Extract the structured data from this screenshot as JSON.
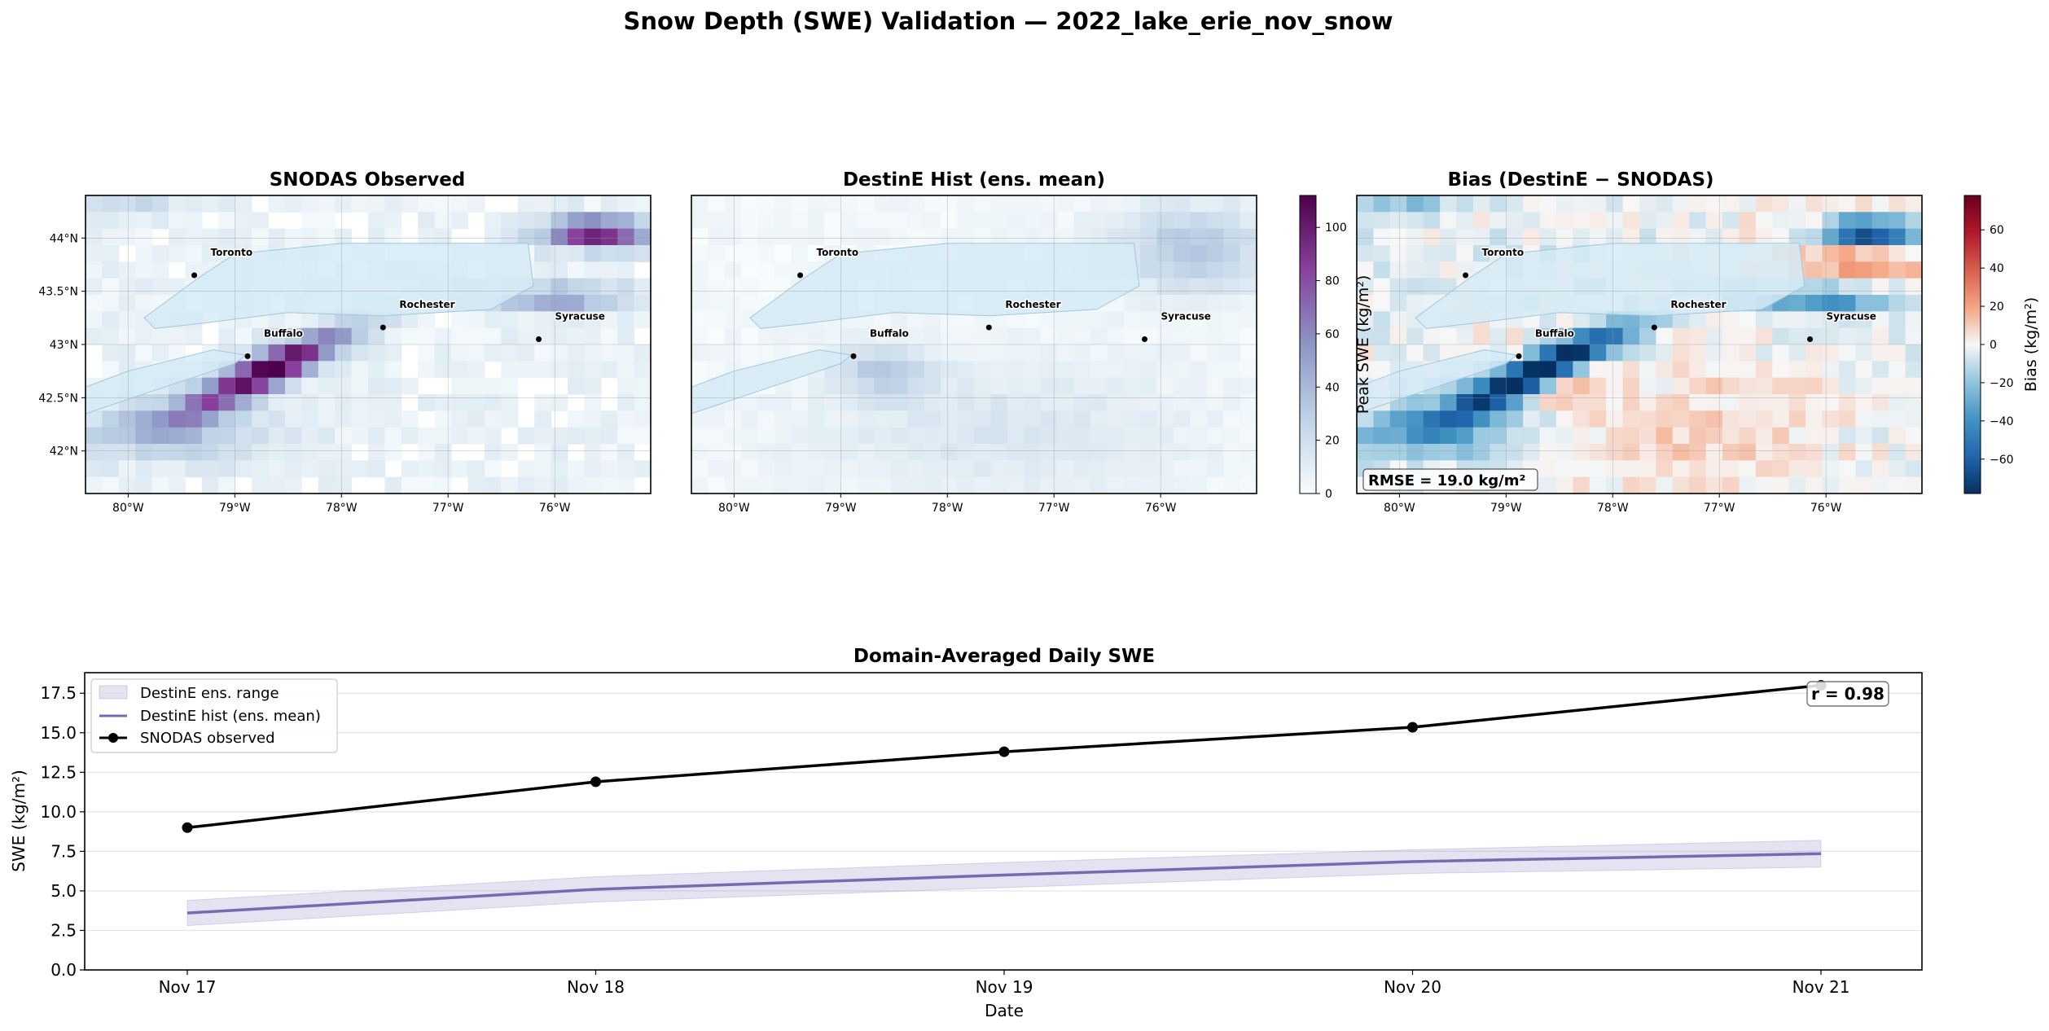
{
  "figure": {
    "title": "Snow Depth (SWE) Validation — 2022_lake_erie_nov_snow"
  },
  "maps": {
    "panels": [
      {
        "title": "SNODAS Observed"
      },
      {
        "title": "DestinE Hist (ens. mean)"
      },
      {
        "title": "Bias (DestinE − SNODAS)"
      }
    ],
    "lon_ticks": [
      "80°W",
      "79°W",
      "78°W",
      "77°W",
      "76°W"
    ],
    "lon_values": [
      -80,
      -79,
      -78,
      -77,
      -76
    ],
    "lat_ticks": [
      "44°N",
      "43.5°N",
      "43°N",
      "42.5°N",
      "42°N"
    ],
    "lat_values": [
      44,
      43.5,
      43,
      42.5,
      42
    ],
    "extent": {
      "lon": [
        -80.4,
        -75.1
      ],
      "lat": [
        41.6,
        44.4
      ]
    },
    "cities": [
      {
        "name": "Toronto",
        "lon": -79.38,
        "lat": 43.65
      },
      {
        "name": "Buffalo",
        "lon": -78.88,
        "lat": 42.89
      },
      {
        "name": "Rochester",
        "lon": -77.61,
        "lat": 43.16
      },
      {
        "name": "Syracuse",
        "lon": -76.15,
        "lat": 43.05
      }
    ],
    "swe_colorbar": {
      "label": "Peak SWE (kg/m²)",
      "ticks": [
        "0",
        "20",
        "40",
        "60",
        "80",
        "100"
      ],
      "range": [
        0,
        112
      ],
      "colors": [
        "#f7fcfd",
        "#bfd3e6",
        "#8c96c6",
        "#88419d",
        "#4d004b"
      ]
    },
    "bias_colorbar": {
      "label": "Bias (kg/m²)",
      "ticks": [
        "60",
        "40",
        "20",
        "0",
        "−20",
        "−40",
        "−60"
      ],
      "tick_values": [
        60,
        40,
        20,
        0,
        -20,
        -40,
        -60
      ],
      "range": [
        -78,
        78
      ],
      "colors": [
        "#053061",
        "#2166ac",
        "#4393c3",
        "#92c5de",
        "#f7f7f7",
        "#f4a582",
        "#d6604d",
        "#b2182b",
        "#67001f"
      ]
    },
    "rmse_label": "RMSE = 19.0 kg/m²"
  },
  "chart_data": {
    "type": "line",
    "title": "Domain-Averaged Daily SWE",
    "xlabel": "Date",
    "ylabel": "SWE (kg/m²)",
    "categories": [
      "Nov 17",
      "Nov 18",
      "Nov 19",
      "Nov 20",
      "Nov 21"
    ],
    "ylim": [
      0,
      18.8
    ],
    "yticks": [
      "0.0",
      "2.5",
      "5.0",
      "7.5",
      "10.0",
      "12.5",
      "15.0",
      "17.5"
    ],
    "ytick_values": [
      0,
      2.5,
      5,
      7.5,
      10,
      12.5,
      15,
      17.5
    ],
    "grid": true,
    "legend": "top-left",
    "series": [
      {
        "name": "DestinE ens. range",
        "kind": "band",
        "color": "#7b6fbd",
        "lower": [
          2.8,
          4.3,
          5.2,
          6.1,
          6.5
        ],
        "upper": [
          4.4,
          5.9,
          6.8,
          7.6,
          8.2
        ]
      },
      {
        "name": "DestinE hist (ens. mean)",
        "kind": "line",
        "color": "#756bb1",
        "values": [
          3.6,
          5.1,
          6.0,
          6.85,
          7.35
        ]
      },
      {
        "name": "SNODAS observed",
        "kind": "line-marker",
        "color": "#000000",
        "values": [
          9.0,
          11.9,
          13.8,
          15.35,
          18.0
        ]
      }
    ],
    "annotation": "r = 0.98"
  }
}
